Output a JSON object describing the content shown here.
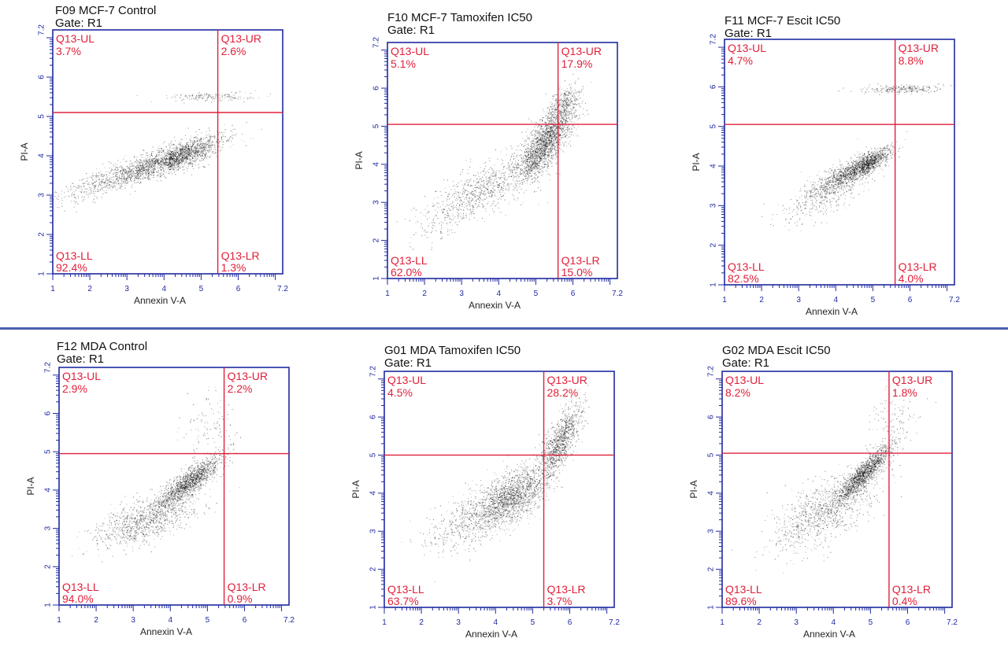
{
  "colors": {
    "axis": "#1f2aa0",
    "gate": "#e0203a",
    "label": "#e0203a",
    "dots": "#000000",
    "divider": "#4a5fb0"
  },
  "panels": [
    {
      "title": "F09 MCF-7 Control",
      "gate": "Gate: R1",
      "xlabel": "Annexin V-A",
      "ylabel": "PI-A",
      "quadrants": {
        "ul": {
          "name": "Q13-UL",
          "pct": "3.7%"
        },
        "ur": {
          "name": "Q13-UR",
          "pct": "2.6%"
        },
        "ll": {
          "name": "Q13-LL",
          "pct": "92.4%"
        },
        "lr": {
          "name": "Q13-LR",
          "pct": "1.3%"
        }
      }
    },
    {
      "title": "F10 MCF-7 Tamoxifen  IC50",
      "gate": "Gate: R1",
      "xlabel": "Annexin V-A",
      "ylabel": "PI-A",
      "quadrants": {
        "ul": {
          "name": "Q13-UL",
          "pct": "5.1%"
        },
        "ur": {
          "name": "Q13-UR",
          "pct": "17.9%"
        },
        "ll": {
          "name": "Q13-LL",
          "pct": "62.0%"
        },
        "lr": {
          "name": "Q13-LR",
          "pct": "15.0%"
        }
      }
    },
    {
      "title": "F11 MCF-7 Escit IC50",
      "gate": "Gate: R1",
      "xlabel": "Annexin V-A",
      "ylabel": "PI-A",
      "quadrants": {
        "ul": {
          "name": "Q13-UL",
          "pct": "4.7%"
        },
        "ur": {
          "name": "Q13-UR",
          "pct": "8.8%"
        },
        "ll": {
          "name": "Q13-LL",
          "pct": "82.5%"
        },
        "lr": {
          "name": "Q13-LR",
          "pct": "4.0%"
        }
      }
    },
    {
      "title": "F12 MDA Control",
      "gate": "Gate: R1",
      "xlabel": "Annexin V-A",
      "ylabel": "PI-A",
      "quadrants": {
        "ul": {
          "name": "Q13-UL",
          "pct": "2.9%"
        },
        "ur": {
          "name": "Q13-UR",
          "pct": "2.2%"
        },
        "ll": {
          "name": "Q13-LL",
          "pct": "94.0%"
        },
        "lr": {
          "name": "Q13-LR",
          "pct": "0.9%"
        }
      }
    },
    {
      "title": "G01 MDA Tamoxifen  IC50",
      "gate": "Gate: R1",
      "xlabel": "Annexin V-A",
      "ylabel": "PI-A",
      "quadrants": {
        "ul": {
          "name": "Q13-UL",
          "pct": "4.5%"
        },
        "ur": {
          "name": "Q13-UR",
          "pct": "28.2%"
        },
        "ll": {
          "name": "Q13-LL",
          "pct": "63.7%"
        },
        "lr": {
          "name": "Q13-LR",
          "pct": "3.7%"
        }
      }
    },
    {
      "title": "G02 MDA Escit IC50",
      "gate": "Gate: R1",
      "xlabel": "Annexin V-A",
      "ylabel": "PI-A",
      "quadrants": {
        "ul": {
          "name": "Q13-UL",
          "pct": "8.2%"
        },
        "ur": {
          "name": "Q13-UR",
          "pct": "1.8%"
        },
        "ll": {
          "name": "Q13-LL",
          "pct": "89.6%"
        },
        "lr": {
          "name": "Q13-LR",
          "pct": "0.4%"
        }
      }
    }
  ],
  "chart_data": [
    {
      "type": "scatter",
      "title": "F09 MCF-7 Control",
      "subtitle": "Gate: R1",
      "xlabel": "Annexin V-A",
      "ylabel": "PI-A",
      "xscale": "log",
      "yscale": "log",
      "xlim": [
        1,
        7.2
      ],
      "ylim": [
        1,
        7.2
      ],
      "xticks": [
        "1",
        "2",
        "3",
        "4",
        "5",
        "6",
        "7.2"
      ],
      "yticks": [
        "1",
        "2",
        "3",
        "4",
        "5",
        "6",
        "7.2"
      ],
      "quadrant_gate": {
        "x": 5.45,
        "y": 5.1
      },
      "quadrants": {
        "Q13-UL": 3.7,
        "Q13-UR": 2.6,
        "Q13-LL": 92.4,
        "Q13-LR": 1.3
      },
      "clusters": [
        {
          "x": 4.1,
          "y": 3.9,
          "sx": 0.7,
          "sy": 0.28,
          "rho": 0.8,
          "n": 2600,
          "skew": 0.8
        },
        {
          "x": 5.3,
          "y": 5.5,
          "sx": 0.6,
          "sy": 0.06,
          "rho": 0.1,
          "n": 170
        }
      ]
    },
    {
      "type": "scatter",
      "title": "F10 MCF-7 Tamoxifen  IC50",
      "subtitle": "Gate: R1",
      "xlabel": "Annexin V-A",
      "ylabel": "PI-A",
      "xscale": "log",
      "yscale": "log",
      "xlim": [
        1,
        7.2
      ],
      "ylim": [
        1,
        7.2
      ],
      "xticks": [
        "1",
        "2",
        "3",
        "4",
        "5",
        "6",
        "7.2"
      ],
      "yticks": [
        "1",
        "2",
        "3",
        "4",
        "5",
        "6",
        "7.2"
      ],
      "quadrant_gate": {
        "x": 5.6,
        "y": 5.05
      },
      "quadrants": {
        "Q13-UL": 5.1,
        "Q13-UR": 17.9,
        "Q13-LL": 62.0,
        "Q13-LR": 15.0
      },
      "clusters": [
        {
          "x": 5.2,
          "y": 4.5,
          "sx": 0.35,
          "sy": 0.45,
          "rho": 0.7,
          "n": 1800
        },
        {
          "x": 3.5,
          "y": 3.3,
          "sx": 0.8,
          "sy": 0.55,
          "rho": 0.8,
          "n": 900
        },
        {
          "x": 5.7,
          "y": 5.5,
          "sx": 0.25,
          "sy": 0.3,
          "rho": 0.5,
          "n": 500
        }
      ]
    },
    {
      "type": "scatter",
      "title": "F11 MCF-7 Escit IC50",
      "subtitle": "Gate: R1",
      "xlabel": "Annexin V-A",
      "ylabel": "PI-A",
      "xscale": "log",
      "yscale": "log",
      "xlim": [
        1,
        7.2
      ],
      "ylim": [
        1,
        7.2
      ],
      "xticks": [
        "1",
        "2",
        "3",
        "4",
        "5",
        "6",
        "7.2"
      ],
      "yticks": [
        "1",
        "2",
        "3",
        "4",
        "5",
        "6",
        "7.2"
      ],
      "quadrant_gate": {
        "x": 5.6,
        "y": 5.05
      },
      "quadrants": {
        "Q13-UL": 4.7,
        "Q13-UR": 8.8,
        "Q13-LL": 82.5,
        "Q13-LR": 4.0
      },
      "clusters": [
        {
          "x": 4.7,
          "y": 4.0,
          "sx": 0.35,
          "sy": 0.22,
          "rho": 0.8,
          "n": 1600,
          "skew": 0.7
        },
        {
          "x": 5.8,
          "y": 5.95,
          "sx": 0.55,
          "sy": 0.05,
          "rho": 0.2,
          "n": 260
        },
        {
          "x": 3.8,
          "y": 3.4,
          "sx": 0.6,
          "sy": 0.4,
          "rho": 0.7,
          "n": 500
        }
      ]
    },
    {
      "type": "scatter",
      "title": "F12 MDA Control",
      "subtitle": "Gate: R1",
      "xlabel": "Annexin V-A",
      "ylabel": "PI-A",
      "xscale": "log",
      "yscale": "log",
      "xlim": [
        1,
        7.2
      ],
      "ylim": [
        1,
        7.2
      ],
      "xticks": [
        "1",
        "2",
        "3",
        "4",
        "5",
        "6",
        "7.2"
      ],
      "yticks": [
        "1",
        "2",
        "3",
        "4",
        "5",
        "6",
        "7.2"
      ],
      "quadrant_gate": {
        "x": 5.45,
        "y": 4.95
      },
      "quadrants": {
        "Q13-UL": 2.9,
        "Q13-UR": 2.2,
        "Q13-LL": 94.0,
        "Q13-LR": 0.9
      },
      "clusters": [
        {
          "x": 4.5,
          "y": 4.2,
          "sx": 0.45,
          "sy": 0.35,
          "rho": 0.85,
          "n": 1500
        },
        {
          "x": 3.3,
          "y": 3.2,
          "sx": 0.7,
          "sy": 0.35,
          "rho": 0.6,
          "n": 1000
        },
        {
          "x": 5.0,
          "y": 5.6,
          "sx": 0.4,
          "sy": 0.5,
          "rho": 0.3,
          "n": 120
        }
      ]
    },
    {
      "type": "scatter",
      "title": "G01 MDA Tamoxifen  IC50",
      "subtitle": "Gate: R1",
      "xlabel": "Annexin V-A",
      "ylabel": "PI-A",
      "xscale": "log",
      "yscale": "log",
      "xlim": [
        1,
        7.2
      ],
      "ylim": [
        1,
        7.2
      ],
      "xticks": [
        "1",
        "2",
        "3",
        "4",
        "5",
        "6",
        "7.2"
      ],
      "yticks": [
        "1",
        "2",
        "3",
        "4",
        "5",
        "6",
        "7.2"
      ],
      "quadrant_gate": {
        "x": 5.3,
        "y": 5.0
      },
      "quadrants": {
        "Q13-UL": 4.5,
        "Q13-UR": 28.2,
        "Q13-LL": 63.7,
        "Q13-LR": 3.7
      },
      "clusters": [
        {
          "x": 4.4,
          "y": 3.9,
          "sx": 0.5,
          "sy": 0.4,
          "rho": 0.6,
          "n": 1700
        },
        {
          "x": 5.7,
          "y": 5.3,
          "sx": 0.3,
          "sy": 0.5,
          "rho": 0.75,
          "n": 1100
        },
        {
          "x": 3.3,
          "y": 3.3,
          "sx": 0.6,
          "sy": 0.4,
          "rho": 0.5,
          "n": 500
        }
      ]
    },
    {
      "type": "scatter",
      "title": "G02 MDA Escit IC50",
      "subtitle": "Gate: R1",
      "xlabel": "Annexin V-A",
      "ylabel": "PI-A",
      "xscale": "log",
      "yscale": "log",
      "xlim": [
        1,
        7.2
      ],
      "ylim": [
        1,
        7.2
      ],
      "xticks": [
        "1",
        "2",
        "3",
        "4",
        "5",
        "6",
        "7.2"
      ],
      "yticks": [
        "1",
        "2",
        "3",
        "4",
        "5",
        "6",
        "7.2"
      ],
      "quadrant_gate": {
        "x": 5.5,
        "y": 5.05
      },
      "quadrants": {
        "Q13-UL": 8.2,
        "Q13-UR": 1.8,
        "Q13-LL": 89.6,
        "Q13-LR": 0.4
      },
      "clusters": [
        {
          "x": 4.8,
          "y": 4.5,
          "sx": 0.4,
          "sy": 0.4,
          "rho": 0.9,
          "n": 1600
        },
        {
          "x": 3.7,
          "y": 3.5,
          "sx": 0.7,
          "sy": 0.5,
          "rho": 0.6,
          "n": 1000
        },
        {
          "x": 5.5,
          "y": 5.8,
          "sx": 0.35,
          "sy": 0.45,
          "rho": 0.4,
          "n": 120
        }
      ]
    }
  ]
}
